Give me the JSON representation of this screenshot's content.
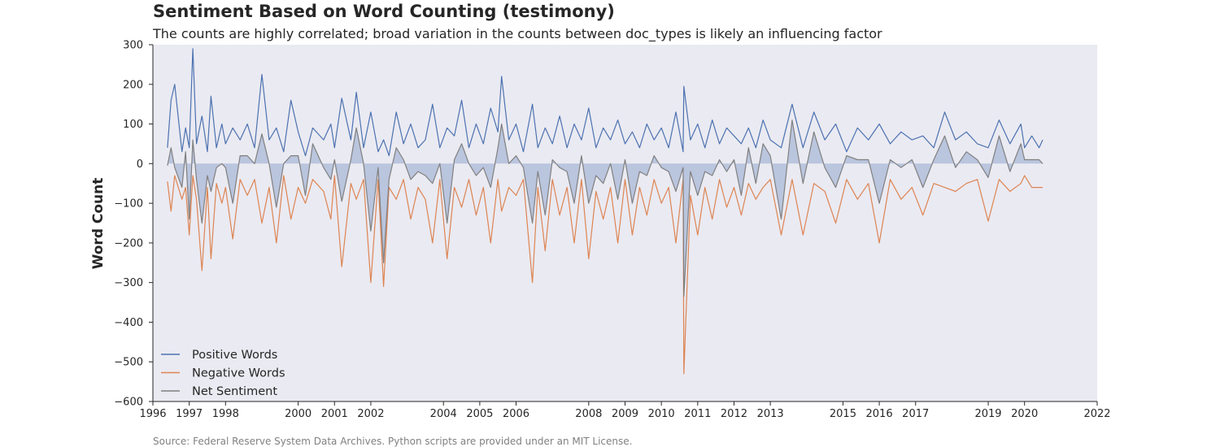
{
  "chart_data": {
    "type": "line",
    "title": "Sentiment Based on Word Counting (testimony)",
    "subtitle": "The counts are highly correlated; broad variation in the counts between doc_types is likely an influencing factor",
    "source": "Source: Federal Reserve System Data Archives. Python scripts are provided under an MIT License.",
    "xlabel": "",
    "ylabel": "Word Count",
    "xlim": [
      1996,
      2022
    ],
    "ylim": [
      -600,
      300
    ],
    "x_ticks": [
      1996,
      1997,
      1998,
      2000,
      2001,
      2002,
      2004,
      2005,
      2006,
      2008,
      2009,
      2010,
      2011,
      2012,
      2013,
      2015,
      2016,
      2017,
      2019,
      2020,
      2022
    ],
    "y_ticks": [
      -600,
      -500,
      -400,
      -300,
      -200,
      -100,
      0,
      100,
      200,
      300
    ],
    "grid": false,
    "legend_position": "lower-left",
    "series": [
      {
        "name": "Positive Words",
        "color": "#4c72b0",
        "x": [
          1996.4,
          1996.5,
          1996.6,
          1996.8,
          1996.9,
          1997.0,
          1997.1,
          1997.2,
          1997.35,
          1997.5,
          1997.6,
          1997.75,
          1997.9,
          1998.0,
          1998.2,
          1998.4,
          1998.6,
          1998.8,
          1999.0,
          1999.2,
          1999.4,
          1999.6,
          1999.8,
          2000.0,
          2000.2,
          2000.4,
          2000.7,
          2000.9,
          2001.0,
          2001.2,
          2001.45,
          2001.6,
          2001.8,
          2002.0,
          2002.2,
          2002.35,
          2002.5,
          2002.7,
          2002.9,
          2003.1,
          2003.3,
          2003.5,
          2003.7,
          2003.9,
          2004.1,
          2004.3,
          2004.5,
          2004.7,
          2004.9,
          2005.1,
          2005.3,
          2005.5,
          2005.6,
          2005.8,
          2006.0,
          2006.2,
          2006.45,
          2006.6,
          2006.8,
          2007.0,
          2007.2,
          2007.4,
          2007.6,
          2007.8,
          2008.0,
          2008.2,
          2008.4,
          2008.6,
          2008.8,
          2009.0,
          2009.2,
          2009.4,
          2009.6,
          2009.8,
          2010.0,
          2010.2,
          2010.4,
          2010.6,
          2010.62,
          2010.8,
          2011.0,
          2011.2,
          2011.4,
          2011.6,
          2011.8,
          2012.0,
          2012.2,
          2012.4,
          2012.6,
          2012.8,
          2013.0,
          2013.3,
          2013.6,
          2013.9,
          2014.2,
          2014.5,
          2014.8,
          2015.1,
          2015.4,
          2015.7,
          2016.0,
          2016.3,
          2016.6,
          2016.9,
          2017.2,
          2017.5,
          2017.8,
          2018.1,
          2018.4,
          2018.7,
          2019.0,
          2019.3,
          2019.6,
          2019.9,
          2020.0,
          2020.2,
          2020.4,
          2020.5
        ],
        "values": [
          40,
          160,
          200,
          30,
          90,
          40,
          290,
          50,
          120,
          30,
          170,
          40,
          100,
          50,
          90,
          60,
          100,
          40,
          225,
          60,
          90,
          30,
          160,
          80,
          20,
          90,
          60,
          100,
          40,
          165,
          60,
          180,
          40,
          130,
          30,
          60,
          20,
          130,
          50,
          100,
          40,
          60,
          150,
          40,
          90,
          70,
          160,
          40,
          100,
          50,
          140,
          80,
          220,
          60,
          100,
          30,
          150,
          40,
          90,
          50,
          120,
          40,
          100,
          60,
          140,
          40,
          90,
          60,
          110,
          50,
          80,
          40,
          100,
          60,
          90,
          40,
          130,
          30,
          195,
          60,
          100,
          40,
          110,
          50,
          90,
          70,
          50,
          90,
          40,
          110,
          60,
          40,
          150,
          40,
          130,
          60,
          100,
          30,
          90,
          60,
          100,
          50,
          80,
          60,
          70,
          40,
          130,
          60,
          80,
          50,
          40,
          110,
          50,
          100,
          40,
          70,
          40,
          60
        ],
        "fill": false
      },
      {
        "name": "Negative Words",
        "color": "#dd8452",
        "x": [
          1996.4,
          1996.5,
          1996.6,
          1996.8,
          1996.9,
          1997.0,
          1997.1,
          1997.2,
          1997.35,
          1997.5,
          1997.6,
          1997.75,
          1997.9,
          1998.0,
          1998.2,
          1998.4,
          1998.6,
          1998.8,
          1999.0,
          1999.2,
          1999.4,
          1999.6,
          1999.8,
          2000.0,
          2000.2,
          2000.4,
          2000.7,
          2000.9,
          2001.0,
          2001.2,
          2001.45,
          2001.6,
          2001.8,
          2002.0,
          2002.2,
          2002.35,
          2002.5,
          2002.7,
          2002.9,
          2003.1,
          2003.3,
          2003.5,
          2003.7,
          2003.9,
          2004.1,
          2004.3,
          2004.5,
          2004.7,
          2004.9,
          2005.1,
          2005.3,
          2005.5,
          2005.6,
          2005.8,
          2006.0,
          2006.2,
          2006.45,
          2006.6,
          2006.8,
          2007.0,
          2007.2,
          2007.4,
          2007.6,
          2007.8,
          2008.0,
          2008.2,
          2008.4,
          2008.6,
          2008.8,
          2009.0,
          2009.2,
          2009.4,
          2009.6,
          2009.8,
          2010.0,
          2010.2,
          2010.4,
          2010.6,
          2010.62,
          2010.8,
          2011.0,
          2011.2,
          2011.4,
          2011.6,
          2011.8,
          2012.0,
          2012.2,
          2012.4,
          2012.6,
          2012.8,
          2013.0,
          2013.3,
          2013.6,
          2013.9,
          2014.2,
          2014.5,
          2014.8,
          2015.1,
          2015.4,
          2015.7,
          2016.0,
          2016.3,
          2016.6,
          2016.9,
          2017.2,
          2017.5,
          2017.8,
          2018.1,
          2018.4,
          2018.7,
          2019.0,
          2019.3,
          2019.6,
          2019.9,
          2020.0,
          2020.2,
          2020.4,
          2020.5
        ],
        "values": [
          -45,
          -120,
          -30,
          -90,
          -60,
          -180,
          -30,
          -90,
          -270,
          -60,
          -240,
          -50,
          -100,
          -60,
          -190,
          -40,
          -80,
          -40,
          -150,
          -60,
          -200,
          -30,
          -140,
          -60,
          -100,
          -40,
          -70,
          -140,
          -30,
          -260,
          -50,
          -90,
          -40,
          -300,
          -40,
          -310,
          -60,
          -90,
          -40,
          -140,
          -60,
          -90,
          -200,
          -40,
          -240,
          -60,
          -110,
          -40,
          -130,
          -60,
          -200,
          -40,
          -120,
          -60,
          -80,
          -40,
          -300,
          -60,
          -220,
          -40,
          -130,
          -60,
          -200,
          -40,
          -240,
          -70,
          -140,
          -60,
          -200,
          -40,
          -180,
          -60,
          -130,
          -40,
          -100,
          -60,
          -200,
          -40,
          -530,
          -80,
          -180,
          -60,
          -140,
          -40,
          -110,
          -60,
          -130,
          -50,
          -90,
          -60,
          -40,
          -180,
          -40,
          -180,
          -50,
          -70,
          -150,
          -40,
          -90,
          -50,
          -200,
          -40,
          -90,
          -60,
          -130,
          -50,
          -60,
          -70,
          -50,
          -40,
          -145,
          -40,
          -70,
          -50,
          -30,
          -60,
          -60,
          -60
        ],
        "fill": false
      },
      {
        "name": "Net Sentiment",
        "color": "#808080",
        "x": [
          1996.4,
          1996.5,
          1996.6,
          1996.8,
          1996.9,
          1997.0,
          1997.1,
          1997.2,
          1997.35,
          1997.5,
          1997.6,
          1997.75,
          1997.9,
          1998.0,
          1998.2,
          1998.4,
          1998.6,
          1998.8,
          1999.0,
          1999.2,
          1999.4,
          1999.6,
          1999.8,
          2000.0,
          2000.2,
          2000.4,
          2000.7,
          2000.9,
          2001.0,
          2001.2,
          2001.45,
          2001.6,
          2001.8,
          2002.0,
          2002.2,
          2002.35,
          2002.5,
          2002.7,
          2002.9,
          2003.1,
          2003.3,
          2003.5,
          2003.7,
          2003.9,
          2004.1,
          2004.3,
          2004.5,
          2004.7,
          2004.9,
          2005.1,
          2005.3,
          2005.5,
          2005.6,
          2005.8,
          2006.0,
          2006.2,
          2006.45,
          2006.6,
          2006.8,
          2007.0,
          2007.2,
          2007.4,
          2007.6,
          2007.8,
          2008.0,
          2008.2,
          2008.4,
          2008.6,
          2008.8,
          2009.0,
          2009.2,
          2009.4,
          2009.6,
          2009.8,
          2010.0,
          2010.2,
          2010.4,
          2010.6,
          2010.62,
          2010.8,
          2011.0,
          2011.2,
          2011.4,
          2011.6,
          2011.8,
          2012.0,
          2012.2,
          2012.4,
          2012.6,
          2012.8,
          2013.0,
          2013.3,
          2013.6,
          2013.9,
          2014.2,
          2014.5,
          2014.8,
          2015.1,
          2015.4,
          2015.7,
          2016.0,
          2016.3,
          2016.6,
          2016.9,
          2017.2,
          2017.5,
          2017.8,
          2018.1,
          2018.4,
          2018.7,
          2019.0,
          2019.3,
          2019.6,
          2019.9,
          2020.0,
          2020.2,
          2020.4,
          2020.5
        ],
        "values": [
          -5,
          40,
          -10,
          -60,
          30,
          -140,
          60,
          -40,
          -150,
          -30,
          -70,
          -10,
          0,
          -10,
          -100,
          20,
          20,
          0,
          75,
          0,
          -110,
          0,
          20,
          20,
          -80,
          50,
          -10,
          -40,
          10,
          -95,
          10,
          90,
          0,
          -170,
          -10,
          -250,
          -40,
          40,
          10,
          -40,
          -20,
          -30,
          -50,
          0,
          -150,
          10,
          50,
          0,
          -30,
          -10,
          -60,
          40,
          100,
          0,
          20,
          -10,
          -150,
          -20,
          -130,
          10,
          -10,
          -20,
          -100,
          20,
          -100,
          -30,
          -50,
          0,
          -90,
          10,
          -100,
          -20,
          -30,
          20,
          -10,
          -20,
          -70,
          -10,
          -335,
          -20,
          -80,
          -20,
          -30,
          10,
          -20,
          10,
          -80,
          40,
          -50,
          50,
          20,
          -140,
          110,
          -50,
          80,
          -10,
          -60,
          20,
          10,
          10,
          -100,
          10,
          -10,
          10,
          -60,
          10,
          70,
          -10,
          30,
          10,
          -35,
          70,
          -20,
          50,
          10,
          10,
          10,
          0
        ],
        "fill": true
      }
    ]
  }
}
